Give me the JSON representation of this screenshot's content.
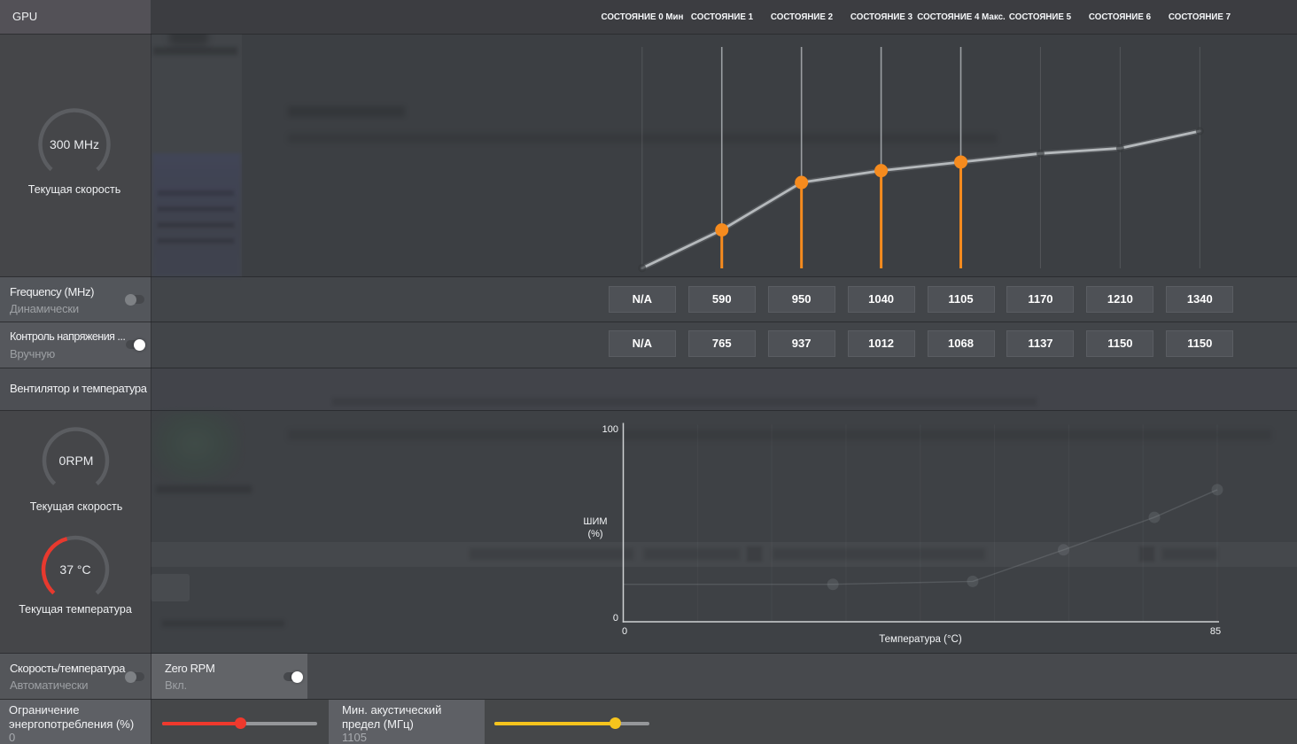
{
  "header": {
    "gpu_label": "GPU",
    "states": [
      "СОСТОЯНИЕ 0 Мин",
      "СОСТОЯНИЕ 1",
      "СОСТОЯНИЕ 2",
      "СОСТОЯНИЕ 3",
      "СОСТОЯНИЕ 4 Макс.",
      "СОСТОЯНИЕ 5",
      "СОСТОЯНИЕ 6",
      "СОСТОЯНИЕ 7"
    ]
  },
  "sidebar": {
    "gpu_gauge": {
      "value": "300 MHz",
      "label": "Текущая скорость"
    },
    "frequency_row": {
      "title": "Frequency (MHz)",
      "subtitle": "Динамически",
      "toggle_on": false
    },
    "voltage_row": {
      "title": "Контроль напряжения ...",
      "subtitle": "Вручную",
      "toggle_on": true
    },
    "fan_section_title": "Вентилятор и температура",
    "fan_gauge": {
      "value": "0RPM",
      "label": "Текущая скорость"
    },
    "temp_gauge": {
      "value": "37 °C",
      "label": "Текущая температура",
      "fraction": 0.445
    }
  },
  "bottom": {
    "speed_temp_row": {
      "title": "Скорость/температура",
      "subtitle": "Автоматически",
      "toggle_on": false
    },
    "zero_rpm_row": {
      "title": "Zero RPM",
      "subtitle": "Вкл.",
      "toggle_on": true
    },
    "power_limit": {
      "title": "Ограничение\nэнергопотребления (%)",
      "value": "0",
      "fill": 0.5,
      "color": "#ef392d"
    },
    "acoustic_limit": {
      "title": "Мин. акустический\nпредел (МГц)",
      "value": "1105",
      "fill": 0.777,
      "color": "#f6c41d"
    }
  },
  "chart_data": [
    {
      "type": "line",
      "title": "GPU frequency states (MHz)",
      "categories": [
        "СОСТОЯНИЕ 0 Мин",
        "СОСТОЯНИЕ 1",
        "СОСТОЯНИЕ 2",
        "СОСТОЯНИЕ 3",
        "СОСТОЯНИЕ 4 Макс.",
        "СОСТОЯНИЕ 5",
        "СОСТОЯНИЕ 6",
        "СОСТОЯНИЕ 7"
      ],
      "series": [
        {
          "name": "frequency_mhz",
          "values": [
            300,
            590,
            950,
            1040,
            1105,
            1170,
            1210,
            1340
          ]
        },
        {
          "name": "voltage_mv",
          "values": [
            null,
            765,
            937,
            1012,
            1068,
            1137,
            1150,
            1150
          ]
        }
      ],
      "frequency_box_labels": [
        "N/A",
        "590",
        "950",
        "1040",
        "1105",
        "1170",
        "1210",
        "1340"
      ],
      "voltage_box_labels": [
        "N/A",
        "765",
        "937",
        "1012",
        "1068",
        "1137",
        "1150",
        "1150"
      ],
      "highlighted_states": [
        1,
        2,
        3,
        4
      ],
      "ylim": [
        300,
        1460
      ],
      "accent_color": "#f68b1e",
      "line_color": "#b5b9bc"
    },
    {
      "type": "line",
      "title": "Fan curve",
      "xlabel": "Температура (°C)",
      "ylabel": "ШИМ\n(%)",
      "x": [
        0,
        30,
        50,
        63,
        76,
        85
      ],
      "y": [
        19,
        19,
        20.5,
        36.5,
        53,
        67
      ],
      "xlim": [
        0,
        85
      ],
      "ylim": [
        0,
        100
      ],
      "x_tick_labels": [
        "0",
        "85"
      ],
      "y_tick_labels": [
        "0",
        "100"
      ],
      "grid_divisions": 8
    }
  ]
}
